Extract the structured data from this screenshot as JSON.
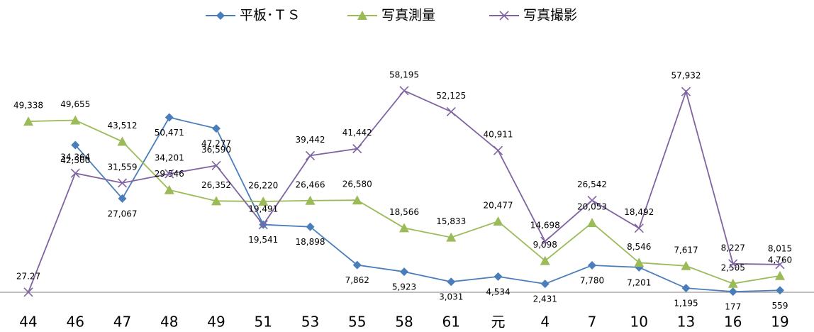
{
  "chart_data": {
    "type": "line",
    "categories": [
      "44",
      "46",
      "47",
      "48",
      "49",
      "51",
      "53",
      "55",
      "58",
      "61",
      "元",
      "4",
      "7",
      "10",
      "13",
      "16",
      "19"
    ],
    "ylim": [
      0,
      60000
    ],
    "legend": "top",
    "series": [
      {
        "name": "平板･ＴＳ",
        "color": "#4a7ebb",
        "marker": "diamond",
        "values": [
          null,
          42500,
          27067,
          50471,
          47277,
          19541,
          18898,
          7862,
          5923,
          3031,
          4534,
          2431,
          7780,
          7201,
          1195,
          177,
          559
        ],
        "value_labels": [
          null,
          "42,500",
          "27,067",
          "50,471",
          "47,277",
          "19,541",
          "18,898",
          "7,862",
          "5,923",
          "3,031",
          "4,534",
          "2,431",
          "7,780",
          "7,201",
          "1,195",
          "177",
          "559"
        ]
      },
      {
        "name": "写真測量",
        "color": "#9bbb59",
        "marker": "triangle",
        "values": [
          49338,
          49655,
          43512,
          29546,
          26352,
          26220,
          26466,
          26580,
          18566,
          15833,
          20477,
          9098,
          20053,
          8546,
          7617,
          2505,
          4760
        ],
        "value_labels": [
          "49,338",
          "49,655",
          "43,512",
          "29,546",
          "26,352",
          "26,220",
          "26,466",
          "26,580",
          "18,566",
          "15,833",
          "20,477",
          "9,098",
          "20,053",
          "8,546",
          "7,617",
          "2,505",
          "4,760"
        ]
      },
      {
        "name": "写真撮影",
        "color": "#8064a2",
        "marker": "x",
        "values": [
          27.27,
          34364,
          31559,
          34201,
          36590,
          19491,
          39442,
          41442,
          58195,
          52125,
          40911,
          14698,
          26542,
          18492,
          57932,
          8227,
          8015
        ],
        "value_labels": [
          "27.27",
          "34,364",
          "31,559",
          "34,201",
          "36,590",
          "19,491",
          "39,442",
          "41,442",
          "58,195",
          "52,125",
          "40,911",
          "14,698",
          "26,542",
          "18,492",
          "57,932",
          "8,227",
          "8,015"
        ]
      }
    ]
  }
}
